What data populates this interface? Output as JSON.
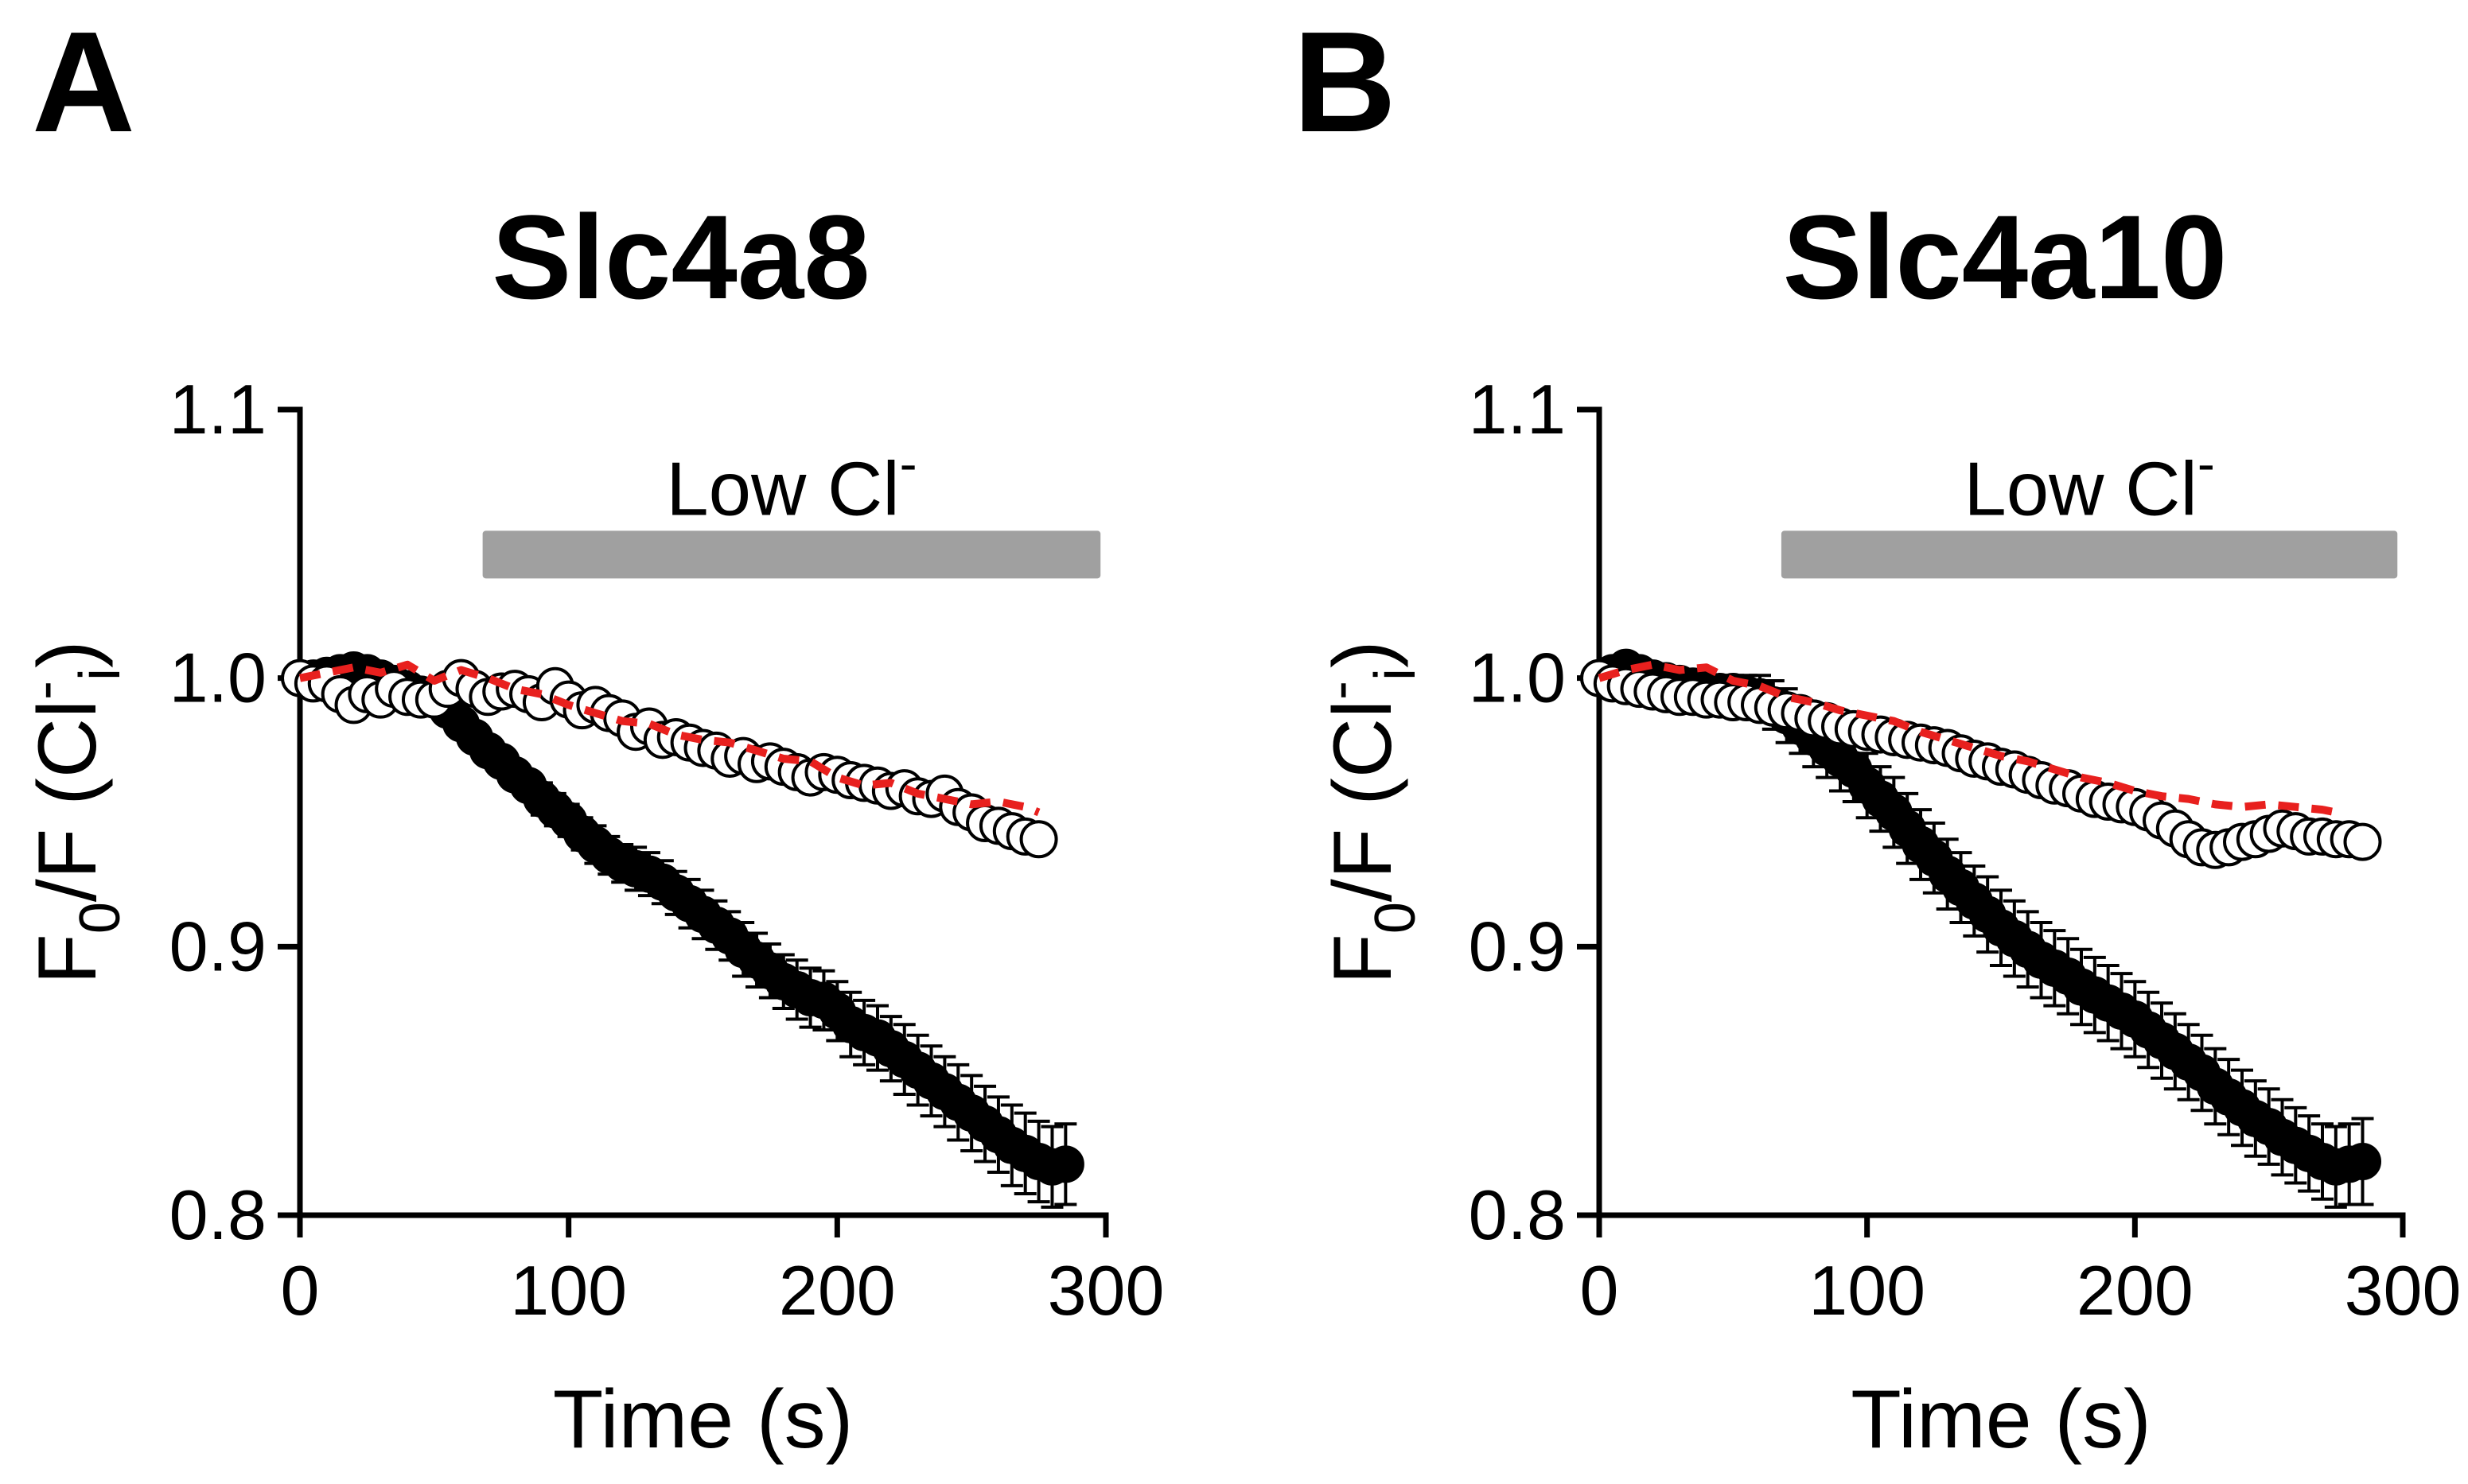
{
  "chart_data": [
    {
      "type": "scatter",
      "panel_label": "A",
      "title": "Slc4a8",
      "xlabel": "Time (s)",
      "ylabel_main": "F",
      "ylabel_sub0": "0",
      "ylabel_mid": "/F (Cl",
      "ylabel_sup": "-",
      "ylabel_sub_i": "i",
      "ylabel_end": ")",
      "xlim": [
        0,
        300
      ],
      "ylim": [
        0.8,
        1.1
      ],
      "xticks": [
        "0",
        "100",
        "200",
        "300"
      ],
      "yticks": [
        "0.8",
        "0.9",
        "1.0",
        "1.1"
      ],
      "bar": {
        "label": "Low Cl",
        "label_sup": "-",
        "start": 68,
        "end": 298,
        "y": 1.046,
        "color": "#a0a0a0"
      },
      "series": [
        {
          "name": "open",
          "marker": "open-circle",
          "x": [
            0,
            5,
            10,
            15,
            20,
            25,
            30,
            35,
            40,
            45,
            50,
            55,
            60,
            65,
            70,
            75,
            80,
            85,
            90,
            95,
            100,
            105,
            110,
            115,
            120,
            125,
            130,
            135,
            140,
            145,
            150,
            155,
            160,
            165,
            170,
            175,
            180,
            185,
            190,
            195,
            200,
            205,
            210,
            215,
            220,
            225,
            230,
            235,
            240,
            245,
            250,
            255,
            260,
            265,
            270,
            275
          ],
          "y": [
            1.0,
            0.998,
            0.998,
            0.994,
            0.99,
            0.994,
            0.992,
            0.996,
            0.993,
            0.992,
            0.992,
            0.996,
            1.0,
            0.996,
            0.993,
            0.995,
            0.996,
            0.994,
            0.991,
            0.997,
            0.992,
            0.988,
            0.99,
            0.987,
            0.985,
            0.98,
            0.982,
            0.977,
            0.978,
            0.976,
            0.974,
            0.973,
            0.97,
            0.971,
            0.968,
            0.969,
            0.967,
            0.965,
            0.963,
            0.965,
            0.964,
            0.962,
            0.961,
            0.96,
            0.958,
            0.959,
            0.956,
            0.955,
            0.957,
            0.952,
            0.95,
            0.946,
            0.945,
            0.943,
            0.941,
            0.94
          ]
        },
        {
          "name": "filled",
          "marker": "filled-circle",
          "error_bars": true,
          "x": [
            0,
            5,
            10,
            15,
            20,
            25,
            30,
            35,
            40,
            45,
            50,
            55,
            60,
            65,
            70,
            75,
            80,
            85,
            90,
            95,
            100,
            105,
            110,
            115,
            120,
            125,
            130,
            135,
            140,
            145,
            150,
            155,
            160,
            165,
            170,
            175,
            180,
            185,
            190,
            195,
            200,
            205,
            210,
            215,
            220,
            225,
            230,
            235,
            240,
            245,
            250,
            255,
            260,
            265,
            270,
            275,
            280,
            285
          ],
          "y": [
            1.0,
            1.0,
            1.001,
            1.002,
            1.003,
            1.002,
            1.0,
            0.998,
            0.996,
            0.994,
            0.992,
            0.988,
            0.983,
            0.978,
            0.973,
            0.969,
            0.964,
            0.96,
            0.955,
            0.951,
            0.947,
            0.942,
            0.938,
            0.934,
            0.931,
            0.929,
            0.927,
            0.924,
            0.92,
            0.916,
            0.912,
            0.908,
            0.904,
            0.899,
            0.895,
            0.891,
            0.887,
            0.884,
            0.881,
            0.88,
            0.876,
            0.871,
            0.868,
            0.866,
            0.862,
            0.858,
            0.854,
            0.85,
            0.846,
            0.842,
            0.838,
            0.834,
            0.83,
            0.826,
            0.823,
            0.82,
            0.818,
            0.819
          ],
          "err": [
            0.001,
            0.001,
            0.001,
            0.001,
            0.002,
            0.002,
            0.002,
            0.002,
            0.003,
            0.003,
            0.003,
            0.003,
            0.004,
            0.004,
            0.004,
            0.005,
            0.005,
            0.005,
            0.006,
            0.006,
            0.006,
            0.006,
            0.007,
            0.007,
            0.007,
            0.008,
            0.008,
            0.008,
            0.008,
            0.009,
            0.009,
            0.009,
            0.009,
            0.01,
            0.01,
            0.01,
            0.01,
            0.011,
            0.011,
            0.011,
            0.011,
            0.012,
            0.012,
            0.012,
            0.012,
            0.013,
            0.013,
            0.013,
            0.013,
            0.014,
            0.014,
            0.014,
            0.014,
            0.015,
            0.015,
            0.015,
            0.015,
            0.015
          ]
        },
        {
          "name": "fit",
          "line": "dashed",
          "color": "#e8201e",
          "x": [
            0,
            10,
            20,
            30,
            40,
            50,
            60,
            70,
            80,
            90,
            100,
            110,
            120,
            130,
            140,
            150,
            160,
            170,
            180,
            190,
            200,
            210,
            220,
            230,
            240,
            250,
            260,
            270,
            275
          ],
          "y": [
            1.0,
            1.002,
            1.004,
            1.002,
            1.005,
            0.999,
            1.003,
            1.0,
            0.996,
            0.994,
            0.99,
            0.987,
            0.984,
            0.983,
            0.979,
            0.977,
            0.976,
            0.973,
            0.97,
            0.969,
            0.963,
            0.96,
            0.961,
            0.957,
            0.955,
            0.953,
            0.954,
            0.952,
            0.95
          ]
        }
      ]
    },
    {
      "type": "scatter",
      "panel_label": "B",
      "title": "Slc4a10",
      "xlabel": "Time (s)",
      "ylabel_main": "F",
      "ylabel_sub0": "0",
      "ylabel_mid": "/F (Cl",
      "ylabel_sup": "-",
      "ylabel_sub_i": "i",
      "ylabel_end": ")",
      "xlim": [
        0,
        300
      ],
      "ylim": [
        0.8,
        1.1
      ],
      "xticks": [
        "0",
        "100",
        "200",
        "300"
      ],
      "yticks": [
        "0.8",
        "0.9",
        "1.0",
        "1.1"
      ],
      "bar": {
        "label": "Low Cl",
        "label_sup": "-",
        "start": 68,
        "end": 298,
        "y": 1.046,
        "color": "#a0a0a0"
      },
      "series": [
        {
          "name": "open",
          "marker": "open-circle",
          "x": [
            0,
            5,
            10,
            15,
            20,
            25,
            30,
            35,
            40,
            45,
            50,
            55,
            60,
            65,
            70,
            75,
            80,
            85,
            90,
            95,
            100,
            105,
            110,
            115,
            120,
            125,
            130,
            135,
            140,
            145,
            150,
            155,
            160,
            165,
            170,
            175,
            180,
            185,
            190,
            195,
            200,
            205,
            210,
            215,
            220,
            225,
            230,
            235,
            240,
            245,
            250,
            255,
            260,
            265,
            270,
            275,
            280,
            285
          ],
          "y": [
            1.0,
            0.998,
            0.997,
            0.996,
            0.995,
            0.994,
            0.993,
            0.993,
            0.992,
            0.992,
            0.991,
            0.991,
            0.99,
            0.989,
            0.988,
            0.987,
            0.985,
            0.984,
            0.982,
            0.981,
            0.98,
            0.979,
            0.978,
            0.977,
            0.976,
            0.975,
            0.974,
            0.972,
            0.97,
            0.969,
            0.967,
            0.966,
            0.964,
            0.962,
            0.96,
            0.959,
            0.957,
            0.955,
            0.954,
            0.953,
            0.952,
            0.95,
            0.947,
            0.944,
            0.94,
            0.937,
            0.936,
            0.937,
            0.939,
            0.94,
            0.942,
            0.944,
            0.943,
            0.941,
            0.941,
            0.94,
            0.94,
            0.939
          ]
        },
        {
          "name": "filled",
          "marker": "filled-circle",
          "error_bars": true,
          "x": [
            0,
            5,
            10,
            15,
            20,
            25,
            30,
            35,
            40,
            45,
            50,
            55,
            60,
            65,
            70,
            75,
            80,
            85,
            90,
            95,
            100,
            105,
            110,
            115,
            120,
            125,
            130,
            135,
            140,
            145,
            150,
            155,
            160,
            165,
            170,
            175,
            180,
            185,
            190,
            195,
            200,
            205,
            210,
            215,
            220,
            225,
            230,
            235,
            240,
            245,
            250,
            255,
            260,
            265,
            270,
            275,
            280,
            285
          ],
          "y": [
            1.0,
            1.002,
            1.004,
            1.002,
            1.0,
            0.999,
            0.998,
            0.997,
            0.996,
            0.995,
            0.995,
            0.994,
            0.993,
            0.99,
            0.986,
            0.982,
            0.978,
            0.974,
            0.97,
            0.966,
            0.96,
            0.955,
            0.95,
            0.944,
            0.938,
            0.933,
            0.927,
            0.922,
            0.917,
            0.912,
            0.907,
            0.903,
            0.899,
            0.895,
            0.892,
            0.889,
            0.885,
            0.882,
            0.879,
            0.876,
            0.873,
            0.869,
            0.865,
            0.861,
            0.857,
            0.853,
            0.848,
            0.844,
            0.84,
            0.836,
            0.833,
            0.829,
            0.826,
            0.823,
            0.82,
            0.818,
            0.819,
            0.82
          ],
          "err": [
            0.001,
            0.002,
            0.002,
            0.003,
            0.003,
            0.004,
            0.004,
            0.005,
            0.005,
            0.006,
            0.006,
            0.007,
            0.008,
            0.009,
            0.01,
            0.01,
            0.011,
            0.011,
            0.012,
            0.012,
            0.012,
            0.012,
            0.013,
            0.013,
            0.013,
            0.013,
            0.013,
            0.013,
            0.013,
            0.014,
            0.014,
            0.014,
            0.014,
            0.014,
            0.014,
            0.014,
            0.014,
            0.014,
            0.014,
            0.014,
            0.014,
            0.014,
            0.014,
            0.014,
            0.014,
            0.014,
            0.014,
            0.014,
            0.014,
            0.014,
            0.014,
            0.014,
            0.014,
            0.014,
            0.014,
            0.015,
            0.015,
            0.016
          ]
        },
        {
          "name": "fit",
          "line": "dashed",
          "color": "#e8201e",
          "x": [
            0,
            10,
            20,
            30,
            40,
            50,
            60,
            70,
            80,
            90,
            100,
            110,
            120,
            130,
            140,
            150,
            160,
            170,
            180,
            190,
            200,
            210,
            220,
            230,
            240,
            250,
            260,
            270,
            275
          ],
          "y": [
            1.0,
            1.003,
            1.005,
            1.003,
            1.004,
            0.999,
            0.997,
            0.993,
            0.991,
            0.988,
            0.986,
            0.984,
            0.98,
            0.977,
            0.974,
            0.971,
            0.969,
            0.966,
            0.963,
            0.961,
            0.958,
            0.956,
            0.955,
            0.953,
            0.952,
            0.953,
            0.952,
            0.951,
            0.95
          ]
        }
      ]
    }
  ]
}
